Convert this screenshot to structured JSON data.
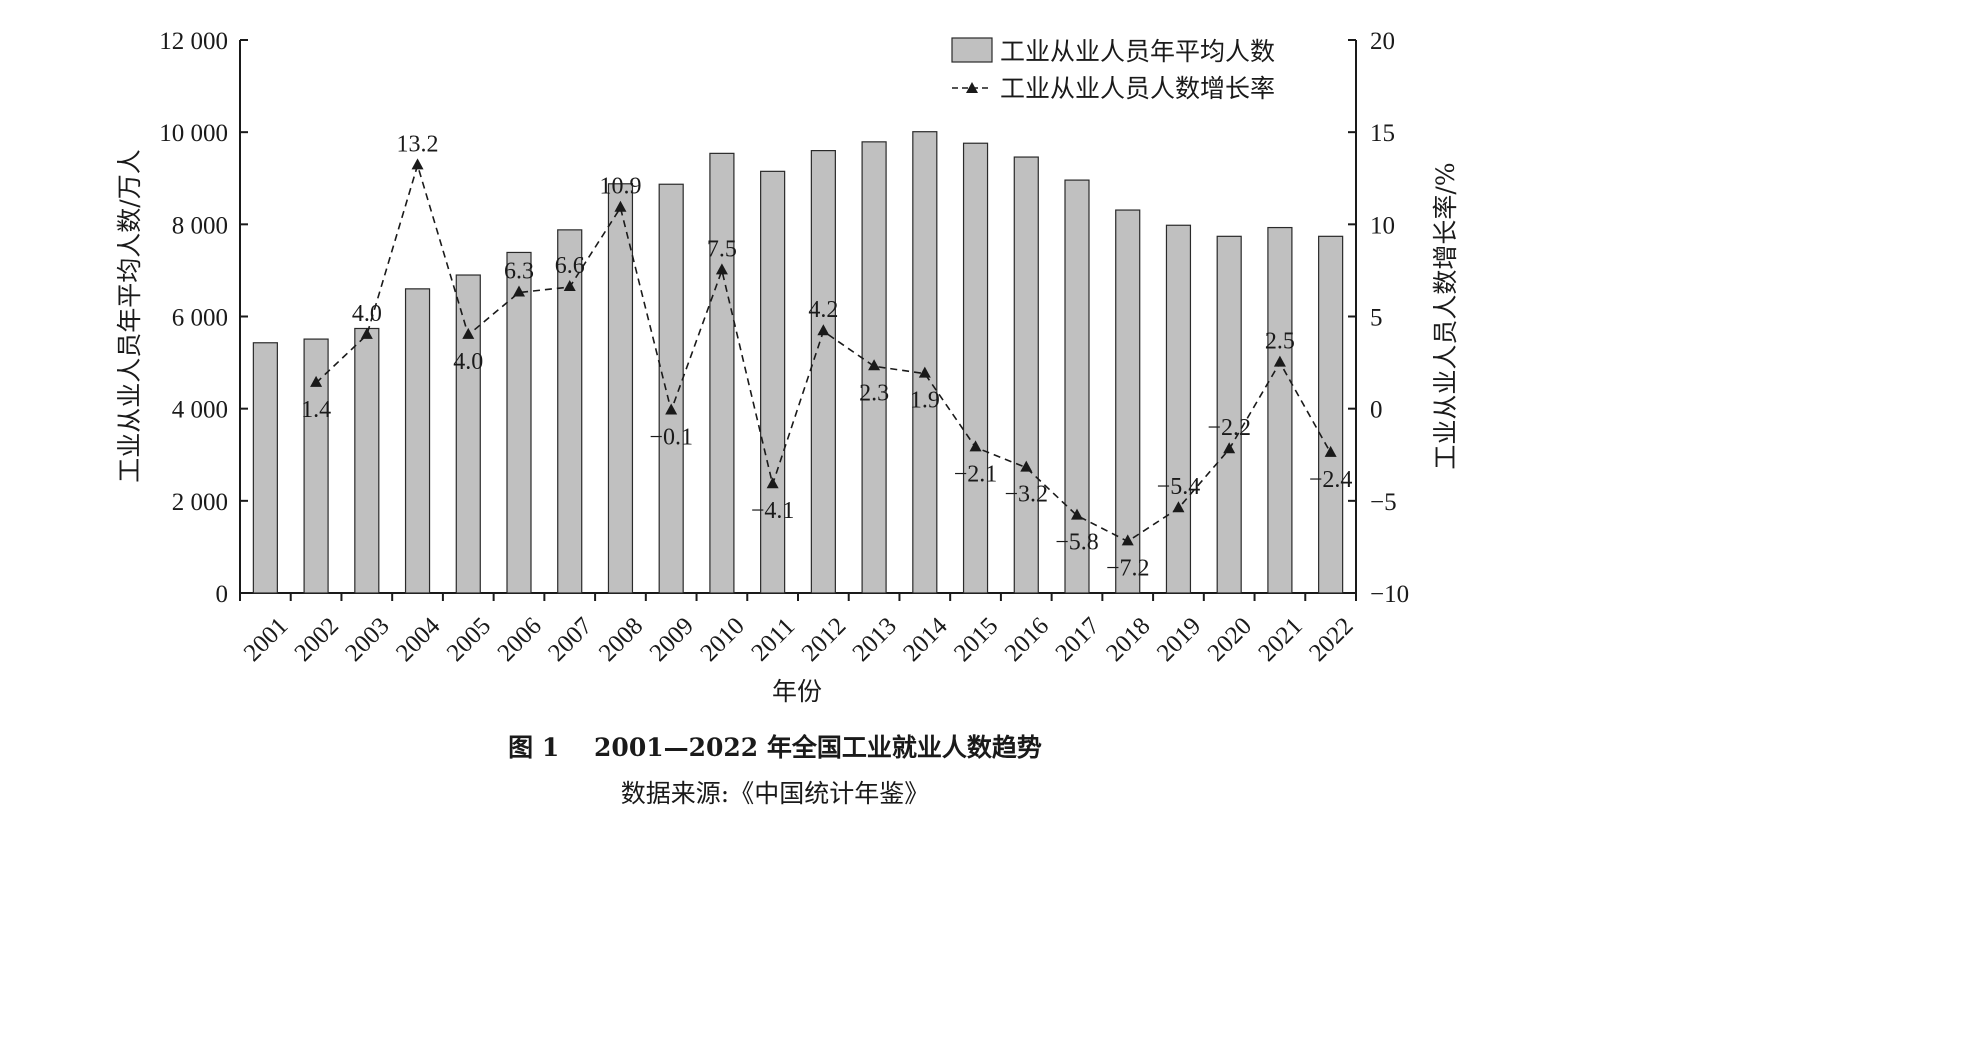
{
  "figure": {
    "title": "图 1    2001—2022 年全国工业就业人数趋势",
    "source": "数据来源:《中国统计年鉴》"
  },
  "colors": {
    "bar_fill": "#c0c0c0",
    "line": "#1a1a1a"
  },
  "chart_data": {
    "type": "bar",
    "title": "",
    "xlabel": "年份",
    "ylabel": "工业从业人员年平均人数/万人",
    "y2label": "工业从业人员人数增长率/%",
    "categories": [
      "2001",
      "2002",
      "2003",
      "2004",
      "2005",
      "2006",
      "2007",
      "2008",
      "2009",
      "2010",
      "2011",
      "2012",
      "2013",
      "2014",
      "2015",
      "2016",
      "2017",
      "2018",
      "2019",
      "2020",
      "2021",
      "2022"
    ],
    "ylim": [
      0,
      12000
    ],
    "yticks": [
      0,
      2000,
      4000,
      6000,
      8000,
      10000,
      12000
    ],
    "ytick_labels": [
      "0",
      "2 000",
      "4 000",
      "6 000",
      "8 000",
      "10 000",
      "12 000"
    ],
    "y2lim": [
      -10,
      20
    ],
    "y2ticks": [
      -10,
      -5,
      0,
      5,
      10,
      15,
      20
    ],
    "y2tick_labels": [
      "−10",
      "−5",
      "0",
      "5",
      "10",
      "15",
      "20"
    ],
    "legend_position": "top-right",
    "grid": false,
    "series": [
      {
        "name": "工业从业人员年平均人数",
        "type": "bar",
        "axis": "left",
        "values": [
          5430,
          5510,
          5740,
          6600,
          6900,
          7390,
          7880,
          8880,
          8870,
          9540,
          9150,
          9600,
          9790,
          10010,
          9760,
          9460,
          8960,
          8310,
          7980,
          7740,
          7930,
          7740
        ]
      },
      {
        "name": "工业从业人员人数增长率",
        "type": "line",
        "axis": "right",
        "values": [
          null,
          1.4,
          4.0,
          13.2,
          4.0,
          6.3,
          6.6,
          10.9,
          -0.1,
          7.5,
          -4.1,
          4.2,
          2.3,
          1.9,
          -2.1,
          -3.2,
          -5.8,
          -7.2,
          -5.4,
          -2.2,
          2.5,
          -2.4
        ],
        "labels": [
          "",
          "1.4",
          "4.0",
          "13.2",
          "4.0",
          "6.3",
          "6.6",
          "10.9",
          "−0.1",
          "7.5",
          "−4.1",
          "4.2",
          "2.3",
          "1.9",
          "−2.1",
          "−3.2",
          "−5.8",
          "−7.2",
          "−5.4",
          "−2.2",
          "2.5",
          "−2.4"
        ]
      }
    ]
  }
}
